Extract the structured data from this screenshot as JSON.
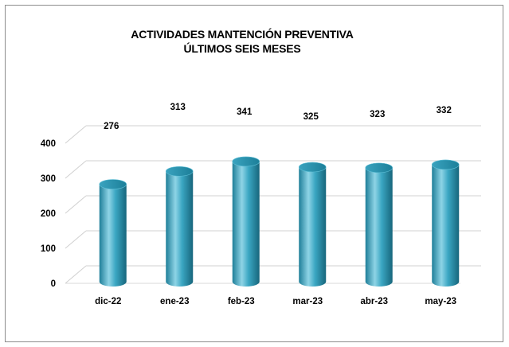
{
  "chart_data": {
    "type": "bar",
    "title": "ACTIVIDADES MANTENCIÓN PREVENTIVA",
    "subtitle": "ÚLTIMOS SEIS MESES",
    "categories": [
      "dic-22",
      "ene-23",
      "feb-23",
      "mar-23",
      "abr-23",
      "may-23"
    ],
    "values": [
      276,
      313,
      341,
      325,
      323,
      332
    ],
    "data_labels": [
      "276",
      "313",
      "341",
      "325",
      "323",
      "332"
    ],
    "yticks": [
      "0",
      "100",
      "200",
      "300",
      "400"
    ],
    "ylim": [
      0,
      400
    ],
    "xlabel": "",
    "ylabel": "",
    "grid": true,
    "legend": "none",
    "bar_color": "#2e9ab7",
    "bar_highlight": "#8ed4e6"
  }
}
